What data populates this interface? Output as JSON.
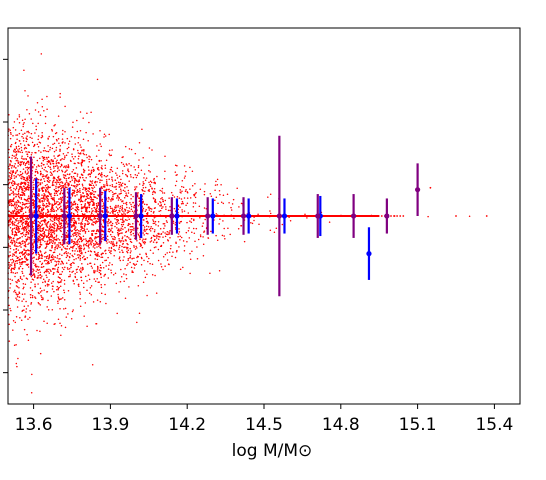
{
  "chart_data": {
    "type": "scatter",
    "xlabel": "log M/M⊙",
    "xlim": [
      13.5,
      15.5
    ],
    "ylim": [
      -3.0,
      3.0
    ],
    "xticks": [
      "13.6",
      "13.9",
      "14.2",
      "14.5",
      "14.8",
      "15.1",
      "15.4"
    ],
    "xtick_values": [
      13.6,
      13.9,
      14.2,
      14.5,
      14.8,
      15.1,
      15.4
    ],
    "yticks": [
      -2.5,
      -1.5,
      -0.5,
      0.5,
      1.5,
      2.5
    ],
    "grid": false,
    "colors": {
      "scatter": "#ff0000",
      "series_a": "#0000ff",
      "series_b": "#800080"
    },
    "series": [
      {
        "color": "#0000ff",
        "points": [
          {
            "x": 13.61,
            "y": 0.0,
            "err": 0.6
          },
          {
            "x": 13.74,
            "y": 0.0,
            "err": 0.45
          },
          {
            "x": 13.88,
            "y": 0.0,
            "err": 0.4
          },
          {
            "x": 14.02,
            "y": 0.0,
            "err": 0.35
          },
          {
            "x": 14.16,
            "y": 0.0,
            "err": 0.28
          },
          {
            "x": 14.3,
            "y": 0.0,
            "err": 0.28
          },
          {
            "x": 14.44,
            "y": 0.0,
            "err": 0.28
          },
          {
            "x": 14.58,
            "y": 0.0,
            "err": 0.28
          },
          {
            "x": 14.72,
            "y": 0.0,
            "err": 0.32
          },
          {
            "x": 14.91,
            "y": -0.6,
            "err": 0.42
          }
        ]
      },
      {
        "color": "#800080",
        "points": [
          {
            "x": 13.59,
            "y": 0.0,
            "err": 0.95
          },
          {
            "x": 13.72,
            "y": 0.0,
            "err": 0.45
          },
          {
            "x": 13.86,
            "y": 0.0,
            "err": 0.45
          },
          {
            "x": 14.0,
            "y": 0.0,
            "err": 0.38
          },
          {
            "x": 14.14,
            "y": 0.0,
            "err": 0.3
          },
          {
            "x": 14.28,
            "y": 0.0,
            "err": 0.3
          },
          {
            "x": 14.42,
            "y": 0.0,
            "err": 0.3
          },
          {
            "x": 14.56,
            "y": 0.0,
            "err": 1.28
          },
          {
            "x": 14.71,
            "y": 0.0,
            "err": 0.35
          },
          {
            "x": 14.85,
            "y": 0.0,
            "err": 0.35
          },
          {
            "x": 14.98,
            "y": 0.0,
            "err": 0.28
          },
          {
            "x": 15.1,
            "y": 0.42,
            "err": 0.42
          }
        ]
      }
    ]
  }
}
